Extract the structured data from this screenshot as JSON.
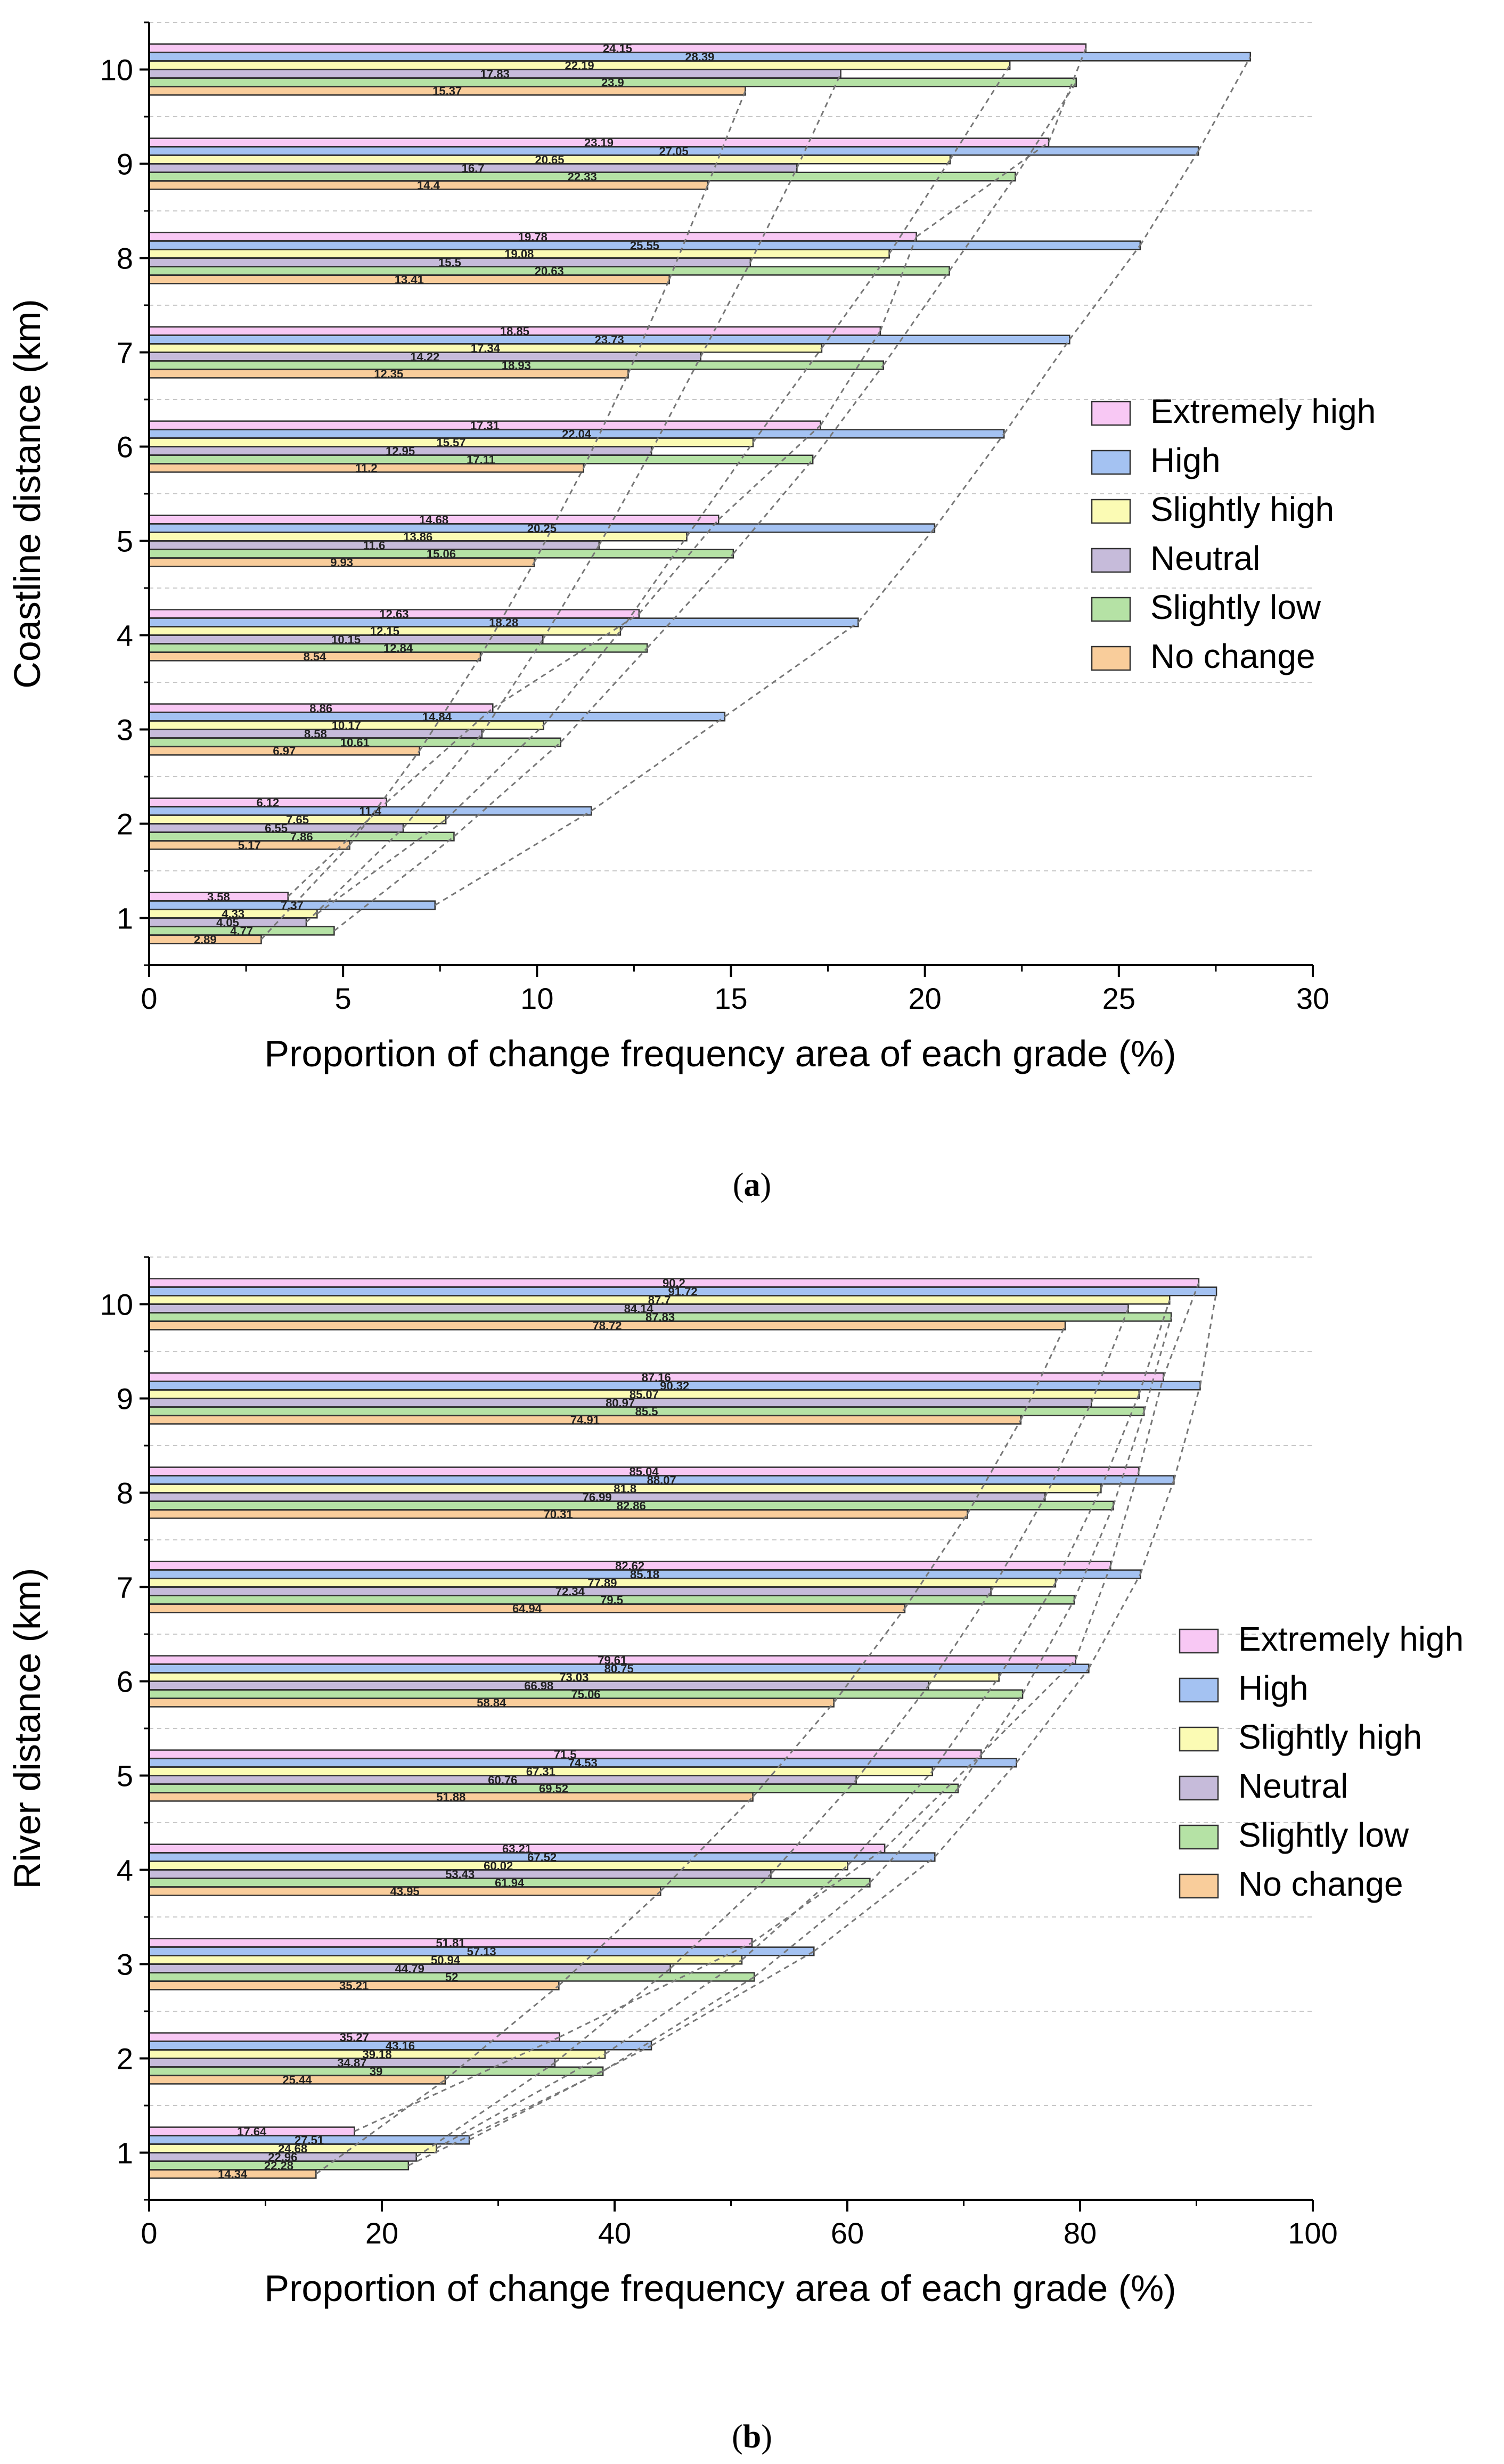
{
  "colors": {
    "Extremely high": "#f8c8f4",
    "High": "#a4c2f2",
    "Slightly high": "#fbfbb4",
    "Neutral": "#c6bbda",
    "Slightly low": "#b5e2a5",
    "No change": "#f9cd9b",
    "bar_stroke": "#333333",
    "grid": "#c8c8c8",
    "connector": "#777777"
  },
  "captions": {
    "a_open": "(",
    "a_letter": "a",
    "a_close": ")",
    "b_open": "(",
    "b_letter": "b",
    "b_close": ")"
  },
  "chart_data": [
    {
      "id": "a",
      "type": "bar",
      "orientation": "horizontal",
      "title": "",
      "xlabel": "Proportion of change frequency area of each grade (%)",
      "ylabel": "Coastline distance (km)",
      "xlim": [
        0,
        30
      ],
      "xticks": [
        0,
        5,
        10,
        15,
        20,
        25,
        30
      ],
      "categories": [
        "1",
        "2",
        "3",
        "4",
        "5",
        "6",
        "7",
        "8",
        "9",
        "10"
      ],
      "grid": "horizontal dashed",
      "legend_position": "right",
      "series": [
        {
          "name": "Extremely high",
          "values": [
            3.58,
            6.12,
            8.86,
            12.63,
            14.68,
            17.31,
            18.85,
            19.78,
            23.19,
            24.15
          ]
        },
        {
          "name": "High",
          "values": [
            7.37,
            11.4,
            14.84,
            18.28,
            20.25,
            22.04,
            23.73,
            25.55,
            27.05,
            28.39
          ]
        },
        {
          "name": "Slightly high",
          "values": [
            4.33,
            7.65,
            10.17,
            12.15,
            13.86,
            15.57,
            17.34,
            19.08,
            20.65,
            22.19
          ]
        },
        {
          "name": "Neutral",
          "values": [
            4.05,
            6.55,
            8.58,
            10.15,
            11.6,
            12.95,
            14.22,
            15.5,
            16.7,
            17.83
          ]
        },
        {
          "name": "Slightly low",
          "values": [
            4.77,
            7.86,
            10.61,
            12.84,
            15.06,
            17.11,
            18.93,
            20.63,
            22.33,
            23.9
          ]
        },
        {
          "name": "No change",
          "values": [
            2.89,
            5.17,
            6.97,
            8.54,
            9.93,
            11.2,
            12.35,
            13.41,
            14.4,
            15.37
          ]
        }
      ]
    },
    {
      "id": "b",
      "type": "bar",
      "orientation": "horizontal",
      "title": "",
      "xlabel": "Proportion of change frequency area of each grade (%)",
      "ylabel": "River distance (km)",
      "xlim": [
        0,
        100
      ],
      "xticks": [
        0,
        20,
        40,
        60,
        80,
        100
      ],
      "categories": [
        "1",
        "2",
        "3",
        "4",
        "5",
        "6",
        "7",
        "8",
        "9",
        "10"
      ],
      "grid": "horizontal dashed",
      "legend_position": "right",
      "series": [
        {
          "name": "Extremely high",
          "values": [
            17.64,
            35.27,
            51.81,
            63.21,
            71.5,
            79.61,
            82.62,
            85.04,
            87.16,
            90.2
          ]
        },
        {
          "name": "High",
          "values": [
            27.51,
            43.16,
            57.13,
            67.52,
            74.53,
            80.75,
            85.18,
            88.07,
            90.32,
            91.72
          ]
        },
        {
          "name": "Slightly high",
          "values": [
            24.68,
            39.18,
            50.94,
            60.02,
            67.31,
            73.03,
            77.89,
            81.8,
            85.07,
            87.7
          ]
        },
        {
          "name": "Neutral",
          "values": [
            22.96,
            34.87,
            44.79,
            53.43,
            60.76,
            66.98,
            72.34,
            76.99,
            80.97,
            84.14
          ]
        },
        {
          "name": "Slightly low",
          "values": [
            22.28,
            39,
            52,
            61.94,
            69.52,
            75.06,
            79.5,
            82.86,
            85.5,
            87.83
          ]
        },
        {
          "name": "No change",
          "values": [
            14.34,
            25.44,
            35.21,
            43.95,
            51.88,
            58.84,
            64.94,
            70.31,
            74.91,
            78.72
          ]
        }
      ]
    }
  ]
}
